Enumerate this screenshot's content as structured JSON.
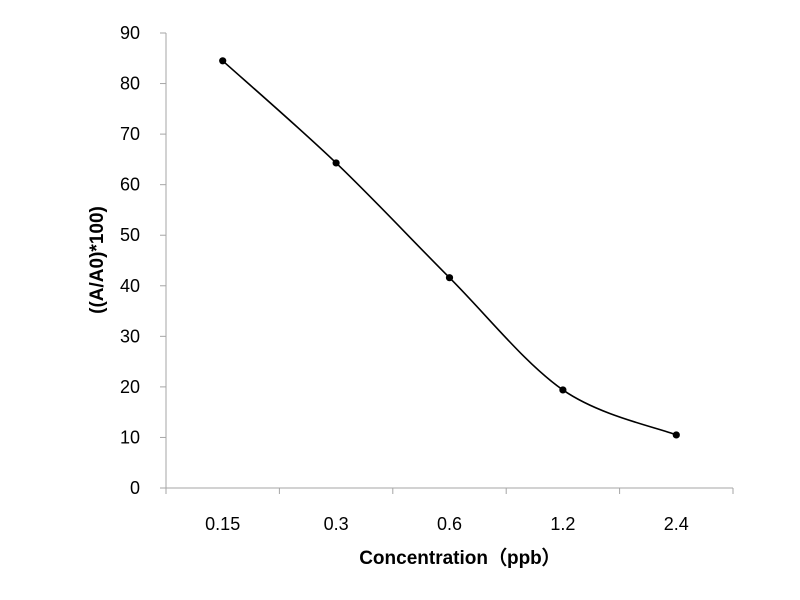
{
  "chart_data": {
    "type": "line",
    "title": "",
    "xlabel": "Concentration（ppb）",
    "ylabel": "((A/A0)*100)",
    "categories": [
      "0.15",
      "0.3",
      "0.6",
      "1.2",
      "2.4"
    ],
    "series": [
      {
        "values": [
          84.5,
          64.3,
          41.6,
          19.4,
          10.5
        ]
      }
    ],
    "ylim": [
      0,
      90
    ],
    "yticks": [
      "0",
      "10",
      "20",
      "30",
      "40",
      "50",
      "60",
      "70",
      "80",
      "90"
    ],
    "grid": false,
    "legend": "none",
    "smooth": true,
    "line_color": "#000000",
    "marker_color": "#000000"
  }
}
